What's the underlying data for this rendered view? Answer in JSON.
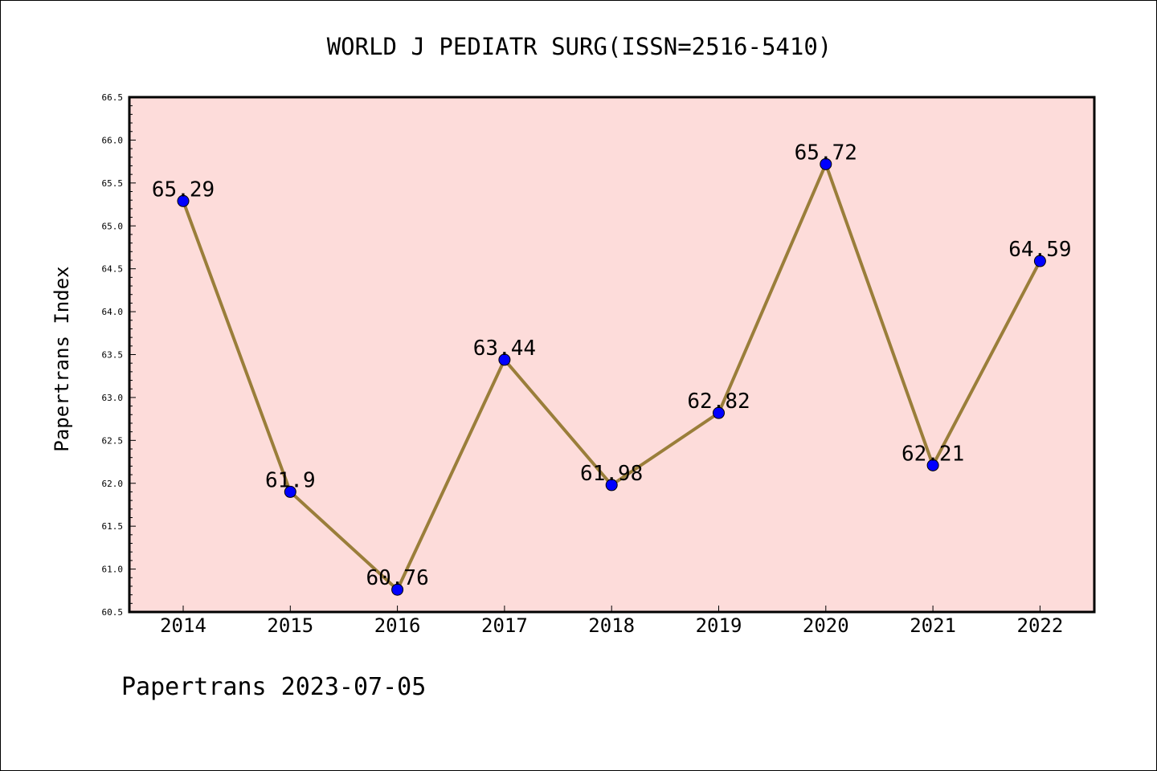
{
  "chart_data": {
    "type": "line",
    "title": "WORLD J PEDIATR SURG(ISSN=2516-5410)",
    "xlabel": "",
    "ylabel": "Papertrans Index",
    "categories": [
      "2014",
      "2015",
      "2016",
      "2017",
      "2018",
      "2019",
      "2020",
      "2021",
      "2022"
    ],
    "values": [
      65.29,
      61.9,
      60.76,
      63.44,
      61.98,
      62.82,
      65.72,
      62.21,
      64.59
    ],
    "data_labels": [
      "65.29",
      "61.9",
      "60.76",
      "63.44",
      "61.98",
      "62.82",
      "65.72",
      "62.21",
      "64.59"
    ],
    "ylim": [
      60.5,
      66.5
    ],
    "y_ticks": [
      "60.5",
      "61.0",
      "61.5",
      "62.0",
      "62.5",
      "63.0",
      "63.5",
      "64.0",
      "64.5",
      "65.0",
      "65.5",
      "66.0",
      "66.5"
    ],
    "grid": false,
    "legend": "none",
    "colors": {
      "plot_background": "#fddcda",
      "line": "#9a7e3a",
      "marker": "#0000ff"
    }
  },
  "footer": "Papertrans 2023-07-05"
}
